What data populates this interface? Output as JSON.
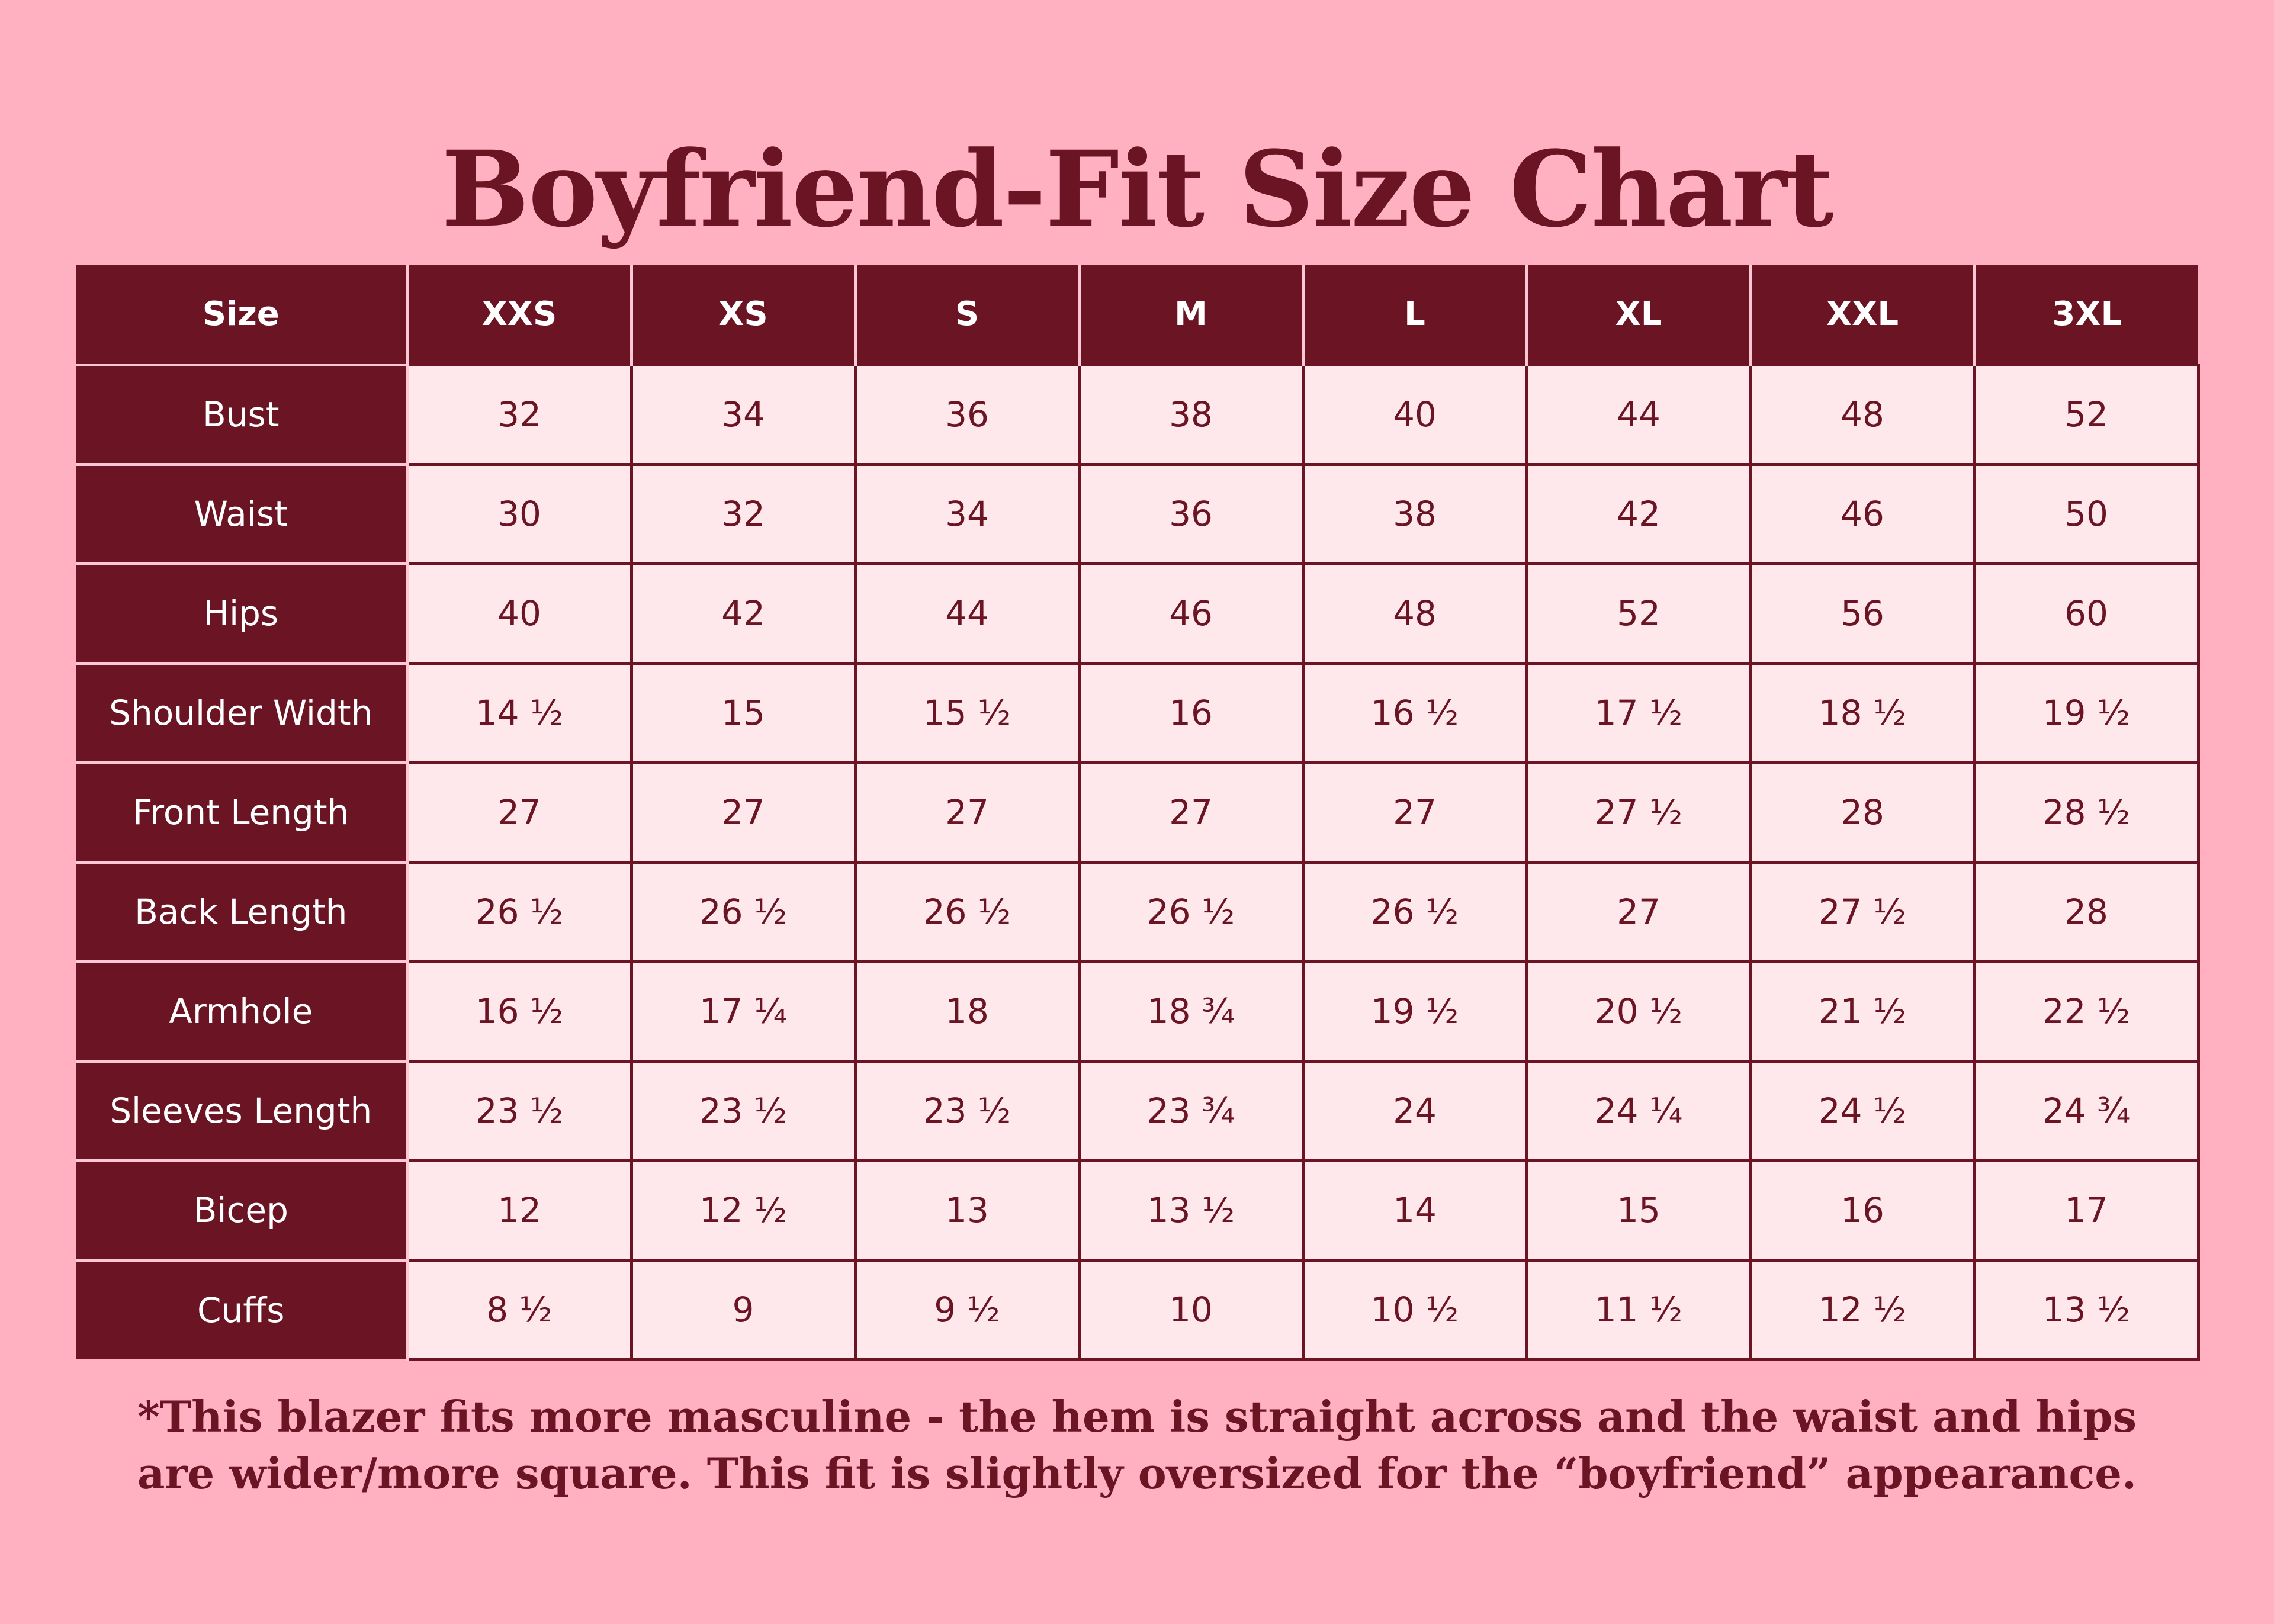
{
  "title": "Boyfriend-Fit Size Chart",
  "table": {
    "header": [
      "Size",
      "XXS",
      "XS",
      "S",
      "M",
      "L",
      "XL",
      "XXL",
      "3XL"
    ],
    "rows": [
      {
        "label": "Bust",
        "values": [
          "32",
          "34",
          "36",
          "38",
          "40",
          "44",
          "48",
          "52"
        ]
      },
      {
        "label": "Waist",
        "values": [
          "30",
          "32",
          "34",
          "36",
          "38",
          "42",
          "46",
          "50"
        ]
      },
      {
        "label": "Hips",
        "values": [
          "40",
          "42",
          "44",
          "46",
          "48",
          "52",
          "56",
          "60"
        ]
      },
      {
        "label": "Shoulder Width",
        "values": [
          "14 ½",
          "15",
          "15 ½",
          "16",
          "16 ½",
          "17 ½",
          "18 ½",
          "19 ½"
        ]
      },
      {
        "label": "Front Length",
        "values": [
          "27",
          "27",
          "27",
          "27",
          "27",
          "27 ½",
          "28",
          "28 ½"
        ]
      },
      {
        "label": "Back Length",
        "values": [
          "26 ½",
          "26 ½",
          "26 ½",
          "26 ½",
          "26 ½",
          "27",
          "27 ½",
          "28"
        ]
      },
      {
        "label": "Armhole",
        "values": [
          "16 ½",
          "17 ¼",
          "18",
          "18 ¾",
          "19 ½",
          "20 ½",
          "21 ½",
          "22 ½"
        ]
      },
      {
        "label": "Sleeves Length",
        "values": [
          "23 ½",
          "23 ½",
          "23 ½",
          "23 ¾",
          "24",
          "24 ¼",
          "24 ½",
          "24 ¾"
        ]
      },
      {
        "label": "Bicep",
        "values": [
          "12",
          "12 ½",
          "13",
          "13 ½",
          "14",
          "15",
          "16",
          "17"
        ]
      },
      {
        "label": "Cuffs",
        "values": [
          "8 ½",
          "9",
          "9 ½",
          "10",
          "10 ½",
          "11 ½",
          "12 ½",
          "13 ½"
        ]
      }
    ]
  },
  "note": {
    "line1": "*This blazer fits more masculine - the hem is straight across and the waist and hips",
    "line2": "are wider/more square. This fit is slightly oversized for the “boyfriend” appearance."
  },
  "colors": {
    "background": "#ffb0c1",
    "header_fill": "#6b1524",
    "cell_fill": "#ffe8ec",
    "text_dark": "#6b1524",
    "text_light": "#ffffff"
  }
}
